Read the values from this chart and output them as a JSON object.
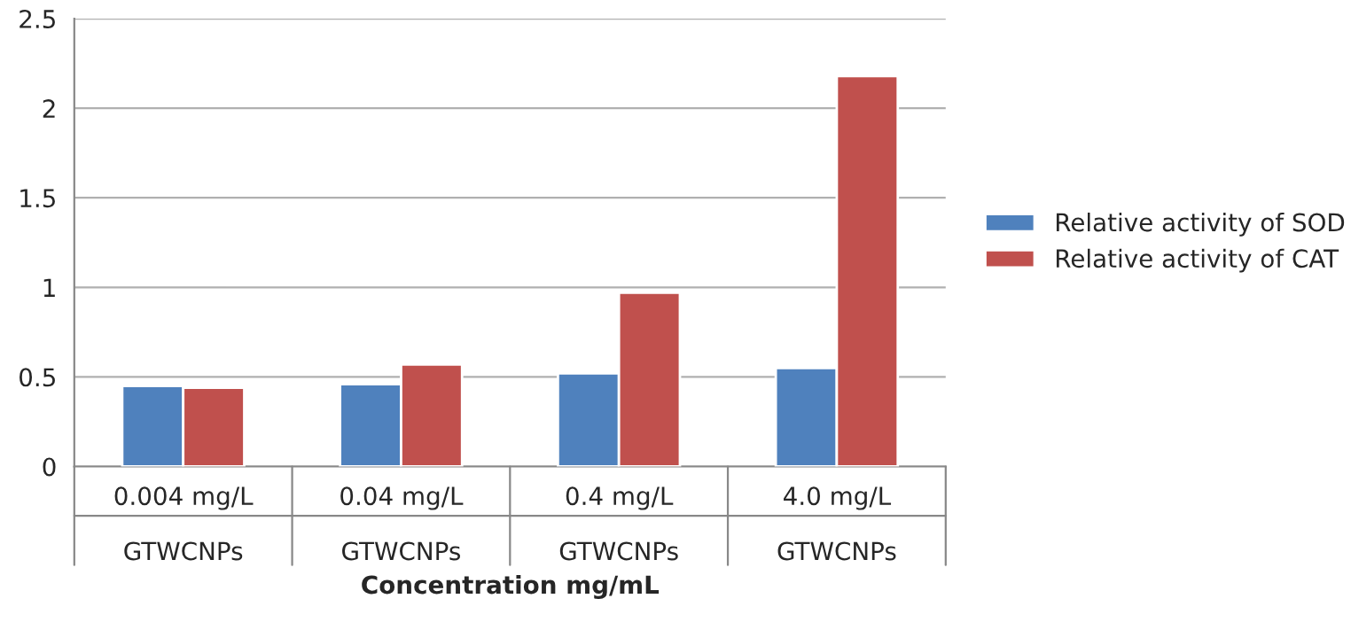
{
  "chart_data": {
    "type": "bar",
    "xlabel": "Concentration mg/mL",
    "categories": [
      "0.004 mg/L\n\nGTWCNPs",
      "0.04 mg/L\n\nGTWCNPs",
      "0.4 mg/L\n\nGTWCNPs",
      "4.0 mg/L\n\nGTWCNPs"
    ],
    "series": [
      {
        "name": "Relative activity of SOD",
        "color": "#4f81bd",
        "values": [
          0.45,
          0.46,
          0.52,
          0.55
        ]
      },
      {
        "name": "Relative activity of CAT",
        "color": "#c0504d",
        "values": [
          0.44,
          0.57,
          0.97,
          2.18
        ]
      }
    ],
    "ylim": [
      0,
      2.5
    ],
    "yticks": [
      0,
      0.5,
      1,
      1.5,
      2,
      2.5
    ],
    "grid": "y",
    "legend": "right"
  }
}
